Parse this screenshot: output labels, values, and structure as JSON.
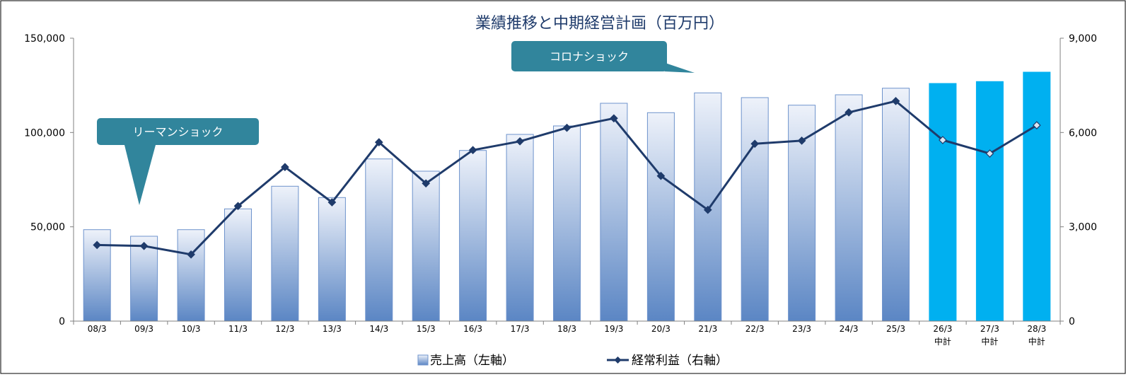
{
  "chart_data": {
    "type": "bar",
    "title": "業績推移と中期経営計画（百万円）",
    "categories": [
      "08/3",
      "09/3",
      "10/3",
      "11/3",
      "12/3",
      "13/3",
      "14/3",
      "15/3",
      "16/3",
      "17/3",
      "18/3",
      "19/3",
      "20/3",
      "21/3",
      "22/3",
      "23/3",
      "24/3",
      "25/3",
      "26/3",
      "27/3",
      "28/3"
    ],
    "category_sublabels": [
      "",
      "",
      "",
      "",
      "",
      "",
      "",
      "",
      "",
      "",
      "",
      "",
      "",
      "",
      "",
      "",
      "",
      "",
      "中計",
      "中計",
      "中計"
    ],
    "plan_categories": [
      "26/3",
      "27/3",
      "28/3"
    ],
    "series": [
      {
        "name": "売上高（左軸）",
        "type": "bar",
        "axis": "left",
        "values": [
          48500,
          45000,
          48500,
          59500,
          71500,
          65500,
          86000,
          79500,
          90500,
          99000,
          103500,
          115500,
          110500,
          121000,
          118500,
          114500,
          120000,
          123500,
          126000,
          127000,
          132000
        ]
      },
      {
        "name": "経常利益（右軸）",
        "type": "line",
        "axis": "right",
        "values": [
          2420,
          2390,
          2120,
          3660,
          4900,
          3780,
          5690,
          4380,
          5440,
          5720,
          6150,
          6450,
          4620,
          3540,
          5640,
          5740,
          6640,
          7000,
          5760,
          5330,
          6230
        ]
      }
    ],
    "y_left": {
      "min": 0,
      "max": 150000,
      "ticks": [
        "0",
        "50,000",
        "100,000",
        "150,000"
      ]
    },
    "y_right": {
      "min": 0,
      "max": 9000,
      "ticks": [
        "0",
        "3,000",
        "6,000",
        "9,000"
      ]
    },
    "legend_position": "bottom-center",
    "grid": false,
    "annotations": [
      {
        "text": "リーマンショック",
        "target_category": "09/3"
      },
      {
        "text": "コロナショック",
        "target_category": "20/3"
      }
    ],
    "colors": {
      "bar_top": "#eef2fa",
      "bar_bottom": "#5b86c4",
      "bar_border": "#6e93cc",
      "plan_bar": "#00b0f0",
      "line": "#1f3b6b",
      "title": "#1f3b6b",
      "callout": "#31859c"
    }
  }
}
